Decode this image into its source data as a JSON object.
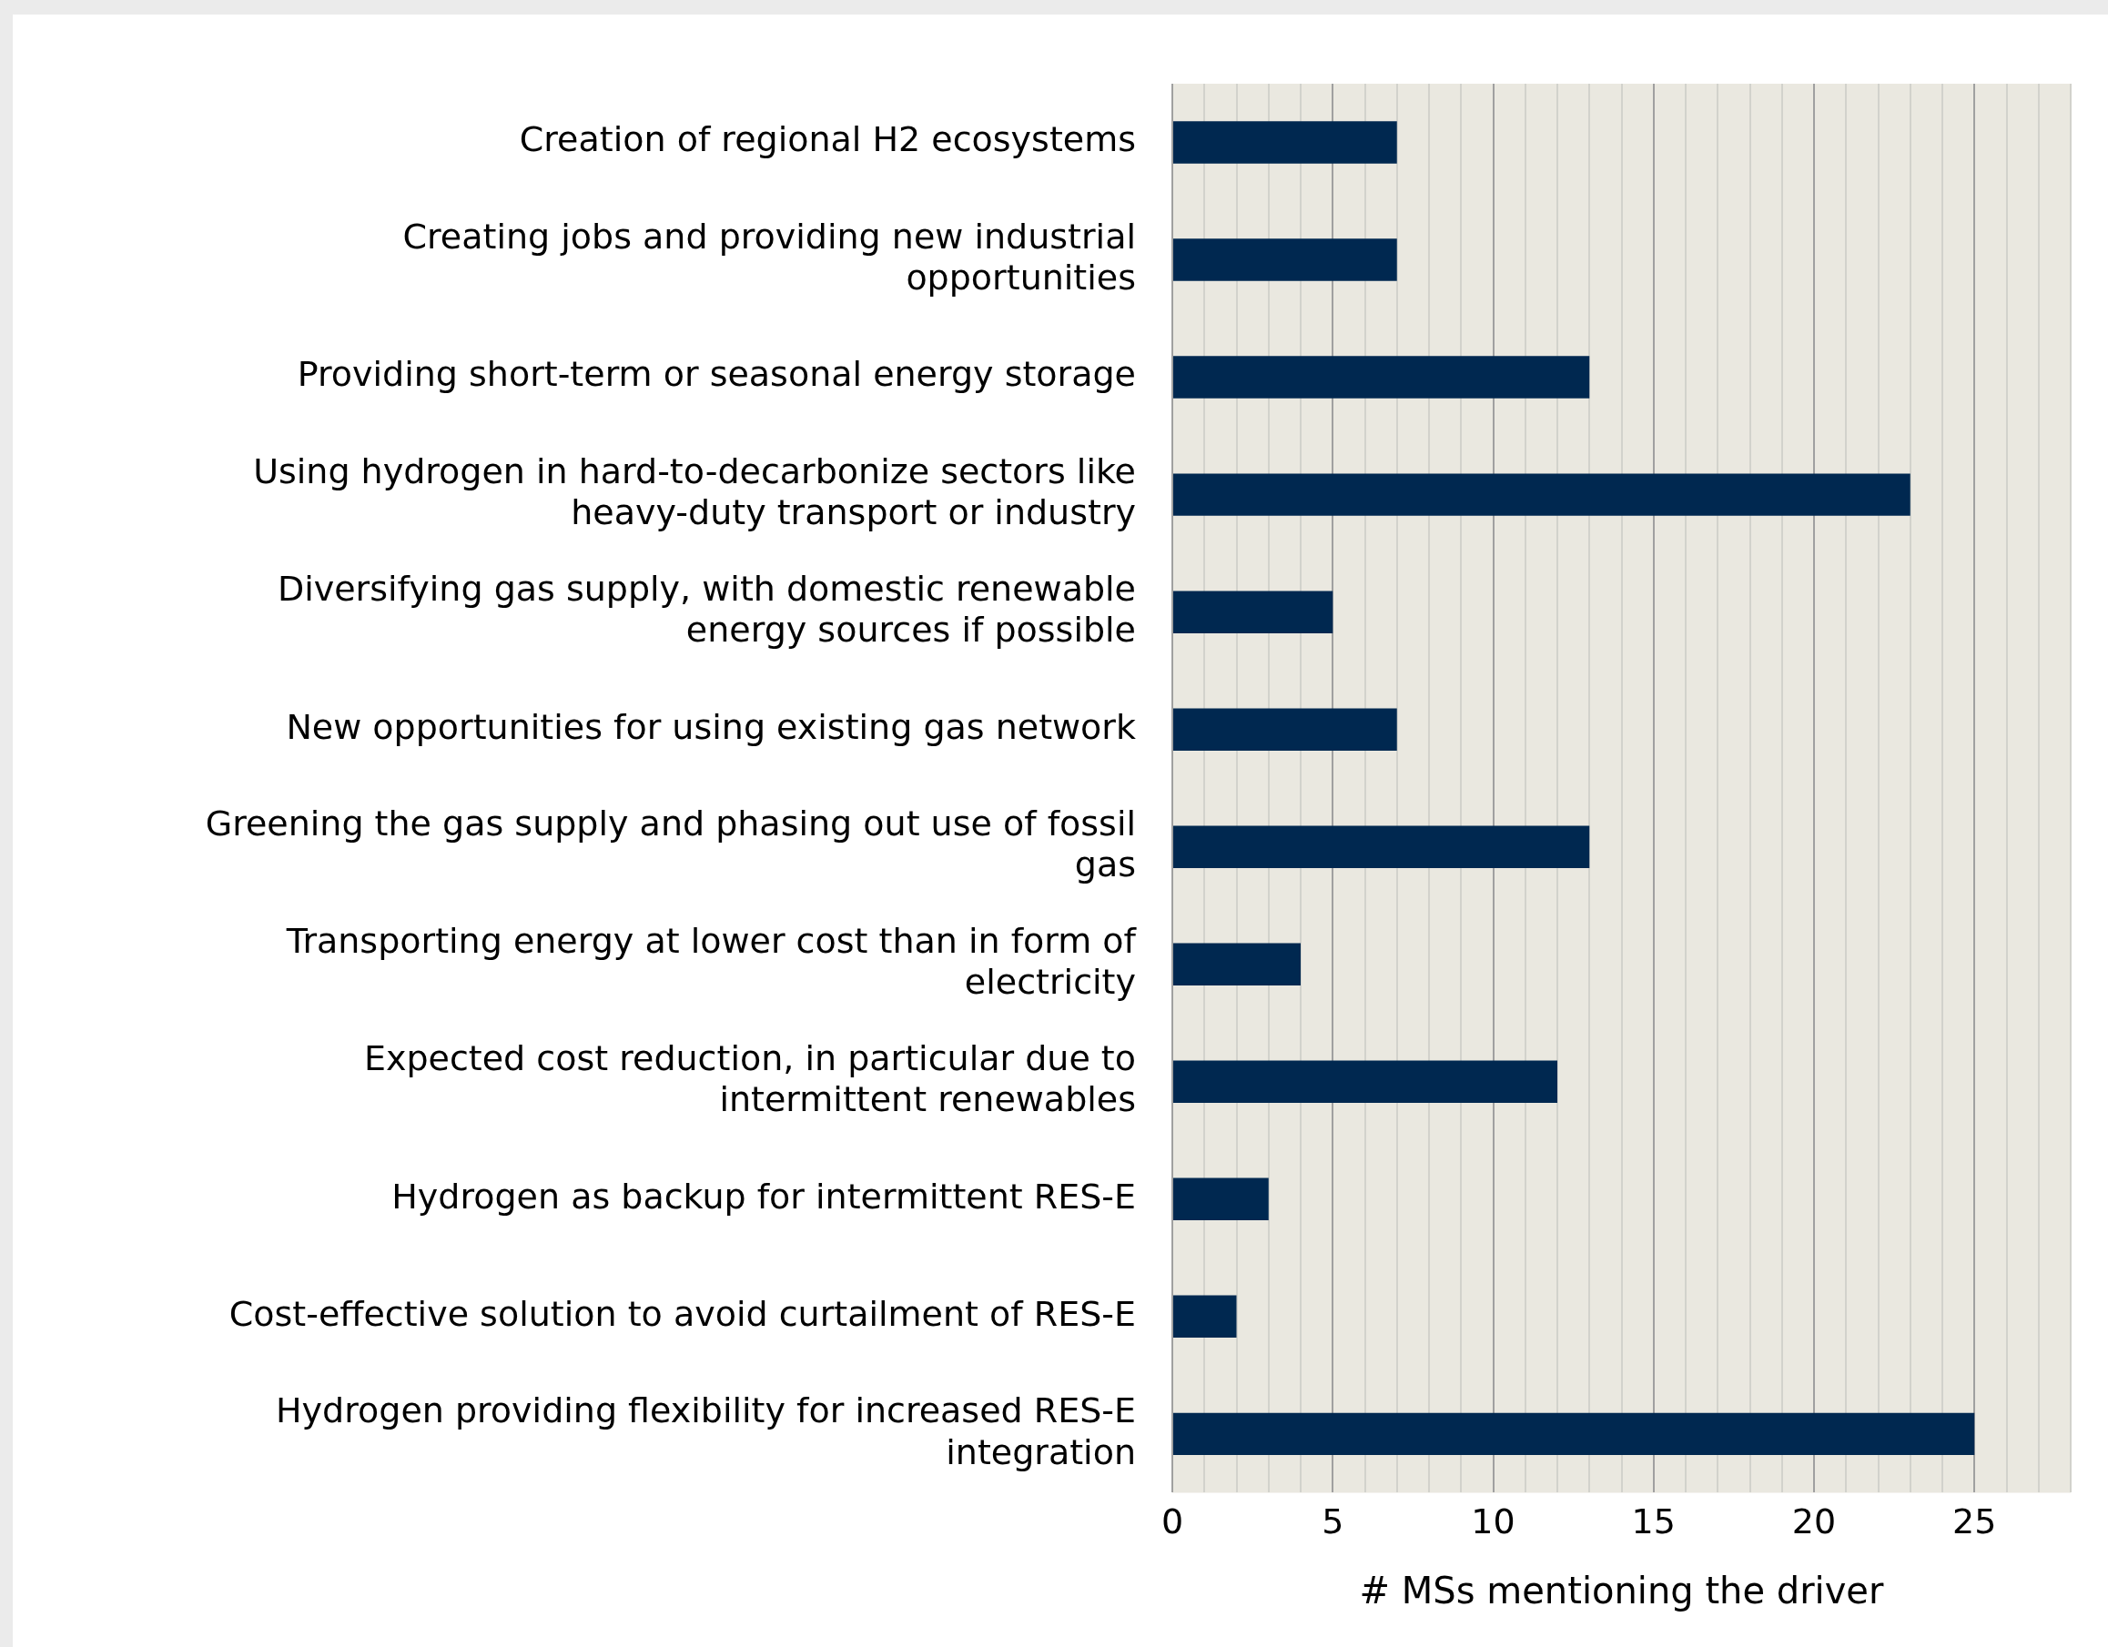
{
  "chart_data": {
    "type": "bar",
    "orientation": "horizontal",
    "xlabel": "# MSs mentioning the driver",
    "categories": [
      "Creation of regional H2 ecosystems",
      "Creating jobs and providing new industrial opportunities",
      "Providing short-term or seasonal energy storage",
      "Using hydrogen in hard-to-decarbonize sectors like heavy-duty transport or industry",
      "Diversifying gas supply, with domestic renewable energy sources if possible",
      "New opportunities for using existing gas network",
      "Greening the gas supply and phasing out use of fossil gas",
      "Transporting energy at lower cost than in form of electricity",
      "Expected cost reduction, in particular due to intermittent renewables",
      "Hydrogen as backup for intermittent RES-E",
      "Cost-effective solution to avoid curtailment of RES-E",
      "Hydrogen providing flexibility for increased RES-E integration"
    ],
    "values": [
      7,
      7,
      13,
      23,
      5,
      7,
      13,
      4,
      12,
      3,
      2,
      25
    ],
    "color": "#002850",
    "xlim": [
      0,
      28
    ],
    "xticks": [
      0,
      {
        "value": 1,
        "label": null
      },
      {
        "value": 2,
        "label": null
      },
      {
        "value": 3,
        "label": null
      },
      {
        "value": 4,
        "label": null
      },
      5,
      {
        "value": 6,
        "label": null
      },
      {
        "value": 7,
        "label": null
      },
      {
        "value": 8,
        "label": null
      },
      {
        "value": 9,
        "label": null
      },
      10,
      {
        "value": 11,
        "label": null
      },
      {
        "value": 12,
        "label": null
      },
      {
        "value": 13,
        "label": null
      },
      {
        "value": 14,
        "label": null
      },
      15,
      {
        "value": 16,
        "label": null
      },
      {
        "value": 17,
        "label": null
      },
      {
        "value": 18,
        "label": null
      },
      {
        "value": 19,
        "label": null
      },
      20,
      {
        "value": 21,
        "label": null
      },
      {
        "value": 22,
        "label": null
      },
      {
        "value": 23,
        "label": null
      },
      {
        "value": 24,
        "label": null
      },
      25,
      {
        "value": 26,
        "label": null
      },
      {
        "value": 27,
        "label": null
      },
      {
        "value": 28,
        "label": null
      }
    ],
    "grid": "x",
    "legend": false
  }
}
